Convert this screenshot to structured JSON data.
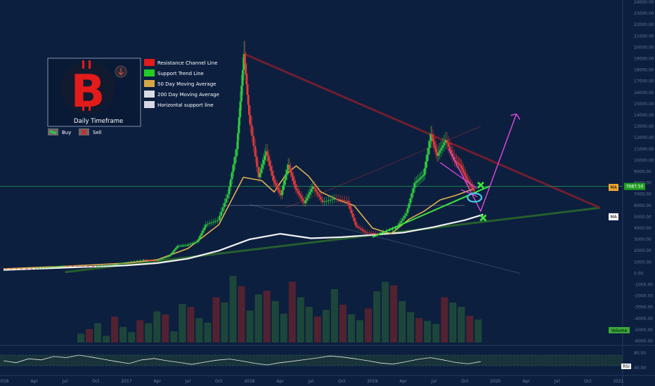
{
  "chart_data": {
    "type": "line",
    "title": "",
    "xlabel": "",
    "ylabel": "",
    "instrument_logo": "bitcoin-logo",
    "timeframe_label": "Daily Timeframe",
    "ylim": [
      -6000,
      24000
    ],
    "grid": false,
    "price_ticks": [
      "24000.00",
      "23000.00",
      "22000.00",
      "21000.00",
      "20000.00",
      "19000.00",
      "18000.00",
      "17000.00",
      "16000.00",
      "15000.00",
      "14000.00",
      "13000.00",
      "12000.00",
      "11000.00",
      "10000.00",
      "9000.00",
      "8000.00",
      "7000.00",
      "6000.00",
      "5000.00",
      "4000.00",
      "3000.00",
      "2000.00",
      "1000.00",
      "0.00",
      "-1000.00",
      "-2000.00",
      "-3000.00",
      "-4000.00",
      "-5000.00",
      "-6000.00"
    ],
    "x_ticks": [
      {
        "label": "2016",
        "x": 2016.0
      },
      {
        "label": "Apr",
        "x": 2016.25
      },
      {
        "label": "Jul",
        "x": 2016.5
      },
      {
        "label": "Oct",
        "x": 2016.75
      },
      {
        "label": "2017",
        "x": 2017.0
      },
      {
        "label": "Apr",
        "x": 2017.25
      },
      {
        "label": "Jul",
        "x": 2017.5
      },
      {
        "label": "Oct",
        "x": 2017.75
      },
      {
        "label": "2018",
        "x": 2018.0
      },
      {
        "label": "Apr",
        "x": 2018.25
      },
      {
        "label": "Jul",
        "x": 2018.5
      },
      {
        "label": "Oct",
        "x": 2018.75
      },
      {
        "label": "2019",
        "x": 2019.0
      },
      {
        "label": "Apr",
        "x": 2019.25
      },
      {
        "label": "Jul",
        "x": 2019.5
      },
      {
        "label": "Oct",
        "x": 2019.75
      },
      {
        "label": "2020",
        "x": 2020.0
      },
      {
        "label": "Apr",
        "x": 2020.25
      },
      {
        "label": "Jul",
        "x": 2020.5
      },
      {
        "label": "Oct",
        "x": 2020.75
      },
      {
        "label": "2021",
        "x": 2021.0
      }
    ],
    "legend": [
      {
        "label": "Resistance Channel Line",
        "color": "#e31b1b"
      },
      {
        "label": "Support Trend Line",
        "color": "#22cc22"
      },
      {
        "label": "50 Day Moving Average",
        "color": "#d6a646"
      },
      {
        "label": "200 Day Moving Average",
        "color": "#d9dde3"
      },
      {
        "label": "Horizontal support line",
        "color": "#d8d8e4"
      }
    ],
    "signal_legend": [
      {
        "label": "Buy",
        "color": "#2ecc40"
      },
      {
        "label": "Sell",
        "color": "#e31b1b"
      }
    ],
    "price_tags": [
      {
        "label": "MA",
        "y": 7600,
        "color": "#f0a830",
        "text_color": "#000000"
      },
      {
        "label": "7687.50",
        "y": 7687.5,
        "color": "#20a020",
        "text_color": "#ffffff"
      },
      {
        "label": "MA",
        "y": 5000,
        "color": "#ffffff",
        "text_color": "#000000"
      }
    ],
    "volume_tag": "Volume",
    "rsi_tag": "RSI",
    "rsi_ticks": [
      "80.00",
      "40.00"
    ],
    "price_series": {
      "name": "",
      "points": [
        [
          2016.0,
          430
        ],
        [
          2016.25,
          420
        ],
        [
          2016.4,
          560
        ],
        [
          2016.5,
          680
        ],
        [
          2016.75,
          630
        ],
        [
          2016.9,
          760
        ],
        [
          2017.0,
          970
        ],
        [
          2017.15,
          1200
        ],
        [
          2017.25,
          1100
        ],
        [
          2017.35,
          1500
        ],
        [
          2017.42,
          2400
        ],
        [
          2017.5,
          2500
        ],
        [
          2017.58,
          2800
        ],
        [
          2017.65,
          4300
        ],
        [
          2017.75,
          4700
        ],
        [
          2017.83,
          7000
        ],
        [
          2017.9,
          11000
        ],
        [
          2017.96,
          19400
        ],
        [
          2018.0,
          14000
        ],
        [
          2018.08,
          8500
        ],
        [
          2018.14,
          10800
        ],
        [
          2018.2,
          8200
        ],
        [
          2018.26,
          6900
        ],
        [
          2018.32,
          9600
        ],
        [
          2018.38,
          7500
        ],
        [
          2018.45,
          6200
        ],
        [
          2018.52,
          7700
        ],
        [
          2018.6,
          6300
        ],
        [
          2018.7,
          6600
        ],
        [
          2018.8,
          6400
        ],
        [
          2018.87,
          4200
        ],
        [
          2018.95,
          3600
        ],
        [
          2019.05,
          3500
        ],
        [
          2019.2,
          4000
        ],
        [
          2019.28,
          5300
        ],
        [
          2019.35,
          8000
        ],
        [
          2019.42,
          8700
        ],
        [
          2019.48,
          12300
        ],
        [
          2019.53,
          10400
        ],
        [
          2019.6,
          11800
        ],
        [
          2019.67,
          10000
        ],
        [
          2019.72,
          9500
        ],
        [
          2019.77,
          8300
        ],
        [
          2019.83,
          7300
        ]
      ]
    },
    "ma50": [
      [
        2016.0,
        400
      ],
      [
        2016.5,
        620
      ],
      [
        2017.0,
        900
      ],
      [
        2017.25,
        1200
      ],
      [
        2017.5,
        2200
      ],
      [
        2017.75,
        4300
      ],
      [
        2017.95,
        8500
      ],
      [
        2018.1,
        8200
      ],
      [
        2018.2,
        7200
      ],
      [
        2018.3,
        8800
      ],
      [
        2018.38,
        9500
      ],
      [
        2018.48,
        8600
      ],
      [
        2018.58,
        7200
      ],
      [
        2018.72,
        6500
      ],
      [
        2018.85,
        6000
      ],
      [
        2019.0,
        4000
      ],
      [
        2019.15,
        3500
      ],
      [
        2019.3,
        4800
      ],
      [
        2019.42,
        5500
      ],
      [
        2019.55,
        6500
      ],
      [
        2019.68,
        6900
      ],
      [
        2019.83,
        7500
      ]
    ],
    "ma200": [
      [
        2016.0,
        300
      ],
      [
        2016.5,
        500
      ],
      [
        2017.0,
        700
      ],
      [
        2017.25,
        900
      ],
      [
        2017.5,
        1300
      ],
      [
        2017.75,
        2000
      ],
      [
        2018.0,
        3000
      ],
      [
        2018.25,
        3500
      ],
      [
        2018.5,
        3100
      ],
      [
        2018.75,
        3200
      ],
      [
        2019.0,
        3400
      ],
      [
        2019.25,
        3600
      ],
      [
        2019.5,
        4100
      ],
      [
        2019.75,
        4700
      ],
      [
        2019.9,
        5200
      ]
    ],
    "resistance_line": [
      [
        2017.96,
        19400
      ],
      [
        2020.85,
        5800
      ]
    ],
    "support_trend_long": [
      [
        2016.5,
        100
      ],
      [
        2020.85,
        5800
      ]
    ],
    "support_trend_short": [
      [
        2019.0,
        3200
      ],
      [
        2019.95,
        7700
      ]
    ],
    "horizontal_support": [
      [
        2017.8,
        6000
      ],
      [
        2019.75,
        6000
      ]
    ],
    "faint_upper_channel": [
      [
        2018.3,
        5800
      ],
      [
        2019.88,
        13000
      ]
    ],
    "faint_lower_line": [
      [
        2018.0,
        6100
      ],
      [
        2020.2,
        0
      ]
    ],
    "projection_path": [
      [
        2019.62,
        11000
      ],
      [
        2019.88,
        5500
      ],
      [
        2020.17,
        14100
      ]
    ],
    "buy_markers": [
      [
        2019.88,
        7800
      ],
      [
        2019.9,
        4900
      ]
    ],
    "highlight_circle": [
      2019.83,
      6700
    ],
    "volume_bars": [
      120,
      180,
      260,
      90,
      350,
      210,
      140,
      300,
      260,
      420,
      380,
      150,
      520,
      480,
      330,
      270,
      610,
      540,
      900,
      760,
      430,
      650,
      700,
      560,
      390,
      820,
      610,
      480,
      350,
      440,
      720,
      510,
      380,
      300,
      460,
      690,
      820,
      770,
      560,
      410,
      330,
      290,
      250,
      610,
      540,
      480,
      360,
      310
    ],
    "rsi_series": [
      55,
      48,
      62,
      58,
      70,
      66,
      75,
      68,
      60,
      52,
      45,
      58,
      63,
      55,
      49,
      42,
      50,
      57,
      61,
      54,
      46,
      40,
      48,
      53,
      59,
      65,
      72,
      68,
      62,
      55,
      47,
      43,
      51,
      60,
      66,
      58,
      49,
      44,
      52
    ]
  }
}
